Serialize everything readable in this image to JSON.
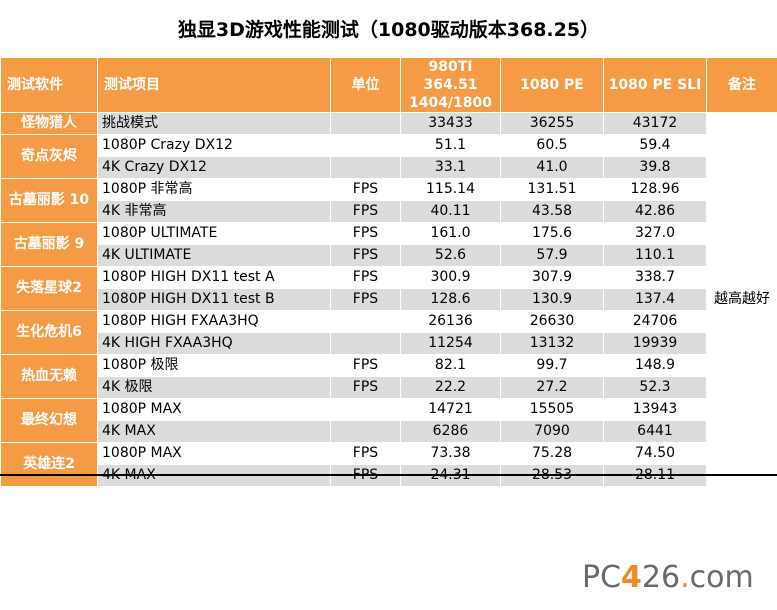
{
  "title": "独显3D游戏性能测试（1080驱动版本368.25）",
  "headers": {
    "software": "测试软件",
    "item": "测试项目",
    "unit": "单位",
    "col1_line1": "980TI 364.51",
    "col1_line2": "1404/1800",
    "col2": "1080 PE",
    "col3": "1080 PE SLI",
    "note": "备注"
  },
  "note_text": "越高越好",
  "groups": [
    {
      "name": "怪物猎人",
      "rows": [
        {
          "item": "挑战模式",
          "unit": "",
          "v1": "33433",
          "v2": "36255",
          "v3": "43172"
        }
      ]
    },
    {
      "name": "奇点灰烬",
      "rows": [
        {
          "item": "1080P Crazy DX12",
          "unit": "",
          "v1": "51.1",
          "v2": "60.5",
          "v3": "59.4"
        },
        {
          "item": "4K Crazy DX12",
          "unit": "",
          "v1": "33.1",
          "v2": "41.0",
          "v3": "39.8"
        }
      ]
    },
    {
      "name": "古墓丽影 10",
      "rows": [
        {
          "item": "1080P 非常高",
          "unit": "FPS",
          "v1": "115.14",
          "v2": "131.51",
          "v3": "128.96"
        },
        {
          "item": "4K 非常高",
          "unit": "FPS",
          "v1": "40.11",
          "v2": "43.58",
          "v3": "42.86"
        }
      ]
    },
    {
      "name": "古墓丽影 9",
      "rows": [
        {
          "item": "1080P ULTIMATE",
          "unit": "FPS",
          "v1": "161.0",
          "v2": "175.6",
          "v3": "327.0"
        },
        {
          "item": "4K ULTIMATE",
          "unit": "FPS",
          "v1": "52.6",
          "v2": "57.9",
          "v3": "110.1"
        }
      ]
    },
    {
      "name": "失落星球2",
      "rows": [
        {
          "item": "1080P HIGH DX11 test A",
          "unit": "FPS",
          "v1": "300.9",
          "v2": "307.9",
          "v3": "338.7"
        },
        {
          "item": "1080P HIGH DX11 test B",
          "unit": "FPS",
          "v1": "128.6",
          "v2": "130.9",
          "v3": "137.4"
        }
      ]
    },
    {
      "name": "生化危机6",
      "rows": [
        {
          "item": "1080P HIGH FXAA3HQ",
          "unit": "",
          "v1": "26136",
          "v2": "26630",
          "v3": "24706"
        },
        {
          "item": "4K HIGH FXAA3HQ",
          "unit": "",
          "v1": "11254",
          "v2": "13132",
          "v3": "19939"
        }
      ]
    },
    {
      "name": "热血无赖",
      "rows": [
        {
          "item": "1080P 极限",
          "unit": "FPS",
          "v1": "82.1",
          "v2": "99.7",
          "v3": "148.9"
        },
        {
          "item": "4K 极限",
          "unit": "FPS",
          "v1": "22.2",
          "v2": "27.2",
          "v3": "52.3"
        }
      ]
    },
    {
      "name": "最终幻想",
      "rows": [
        {
          "item": "1080P MAX",
          "unit": "",
          "v1": "14721",
          "v2": "15505",
          "v3": "13943"
        },
        {
          "item": "4K MAX",
          "unit": "",
          "v1": "6286",
          "v2": "7090",
          "v3": "6441"
        }
      ]
    },
    {
      "name": "英雄连2",
      "rows": [
        {
          "item": "1080P MAX",
          "unit": "FPS",
          "v1": "73.38",
          "v2": "75.28",
          "v3": "74.50"
        },
        {
          "item": "4K MAX",
          "unit": "FPS",
          "v1": "24.31",
          "v2": "28.53",
          "v3": "28.11"
        }
      ]
    }
  ],
  "watermark": {
    "part1": "PC",
    "part2": "4",
    "part3": "26",
    "part4": ".",
    "part5": "com"
  },
  "colors": {
    "header": "#f59a45",
    "row_shade": "#dcdcdc",
    "watermark_accent": "#f08a24"
  }
}
